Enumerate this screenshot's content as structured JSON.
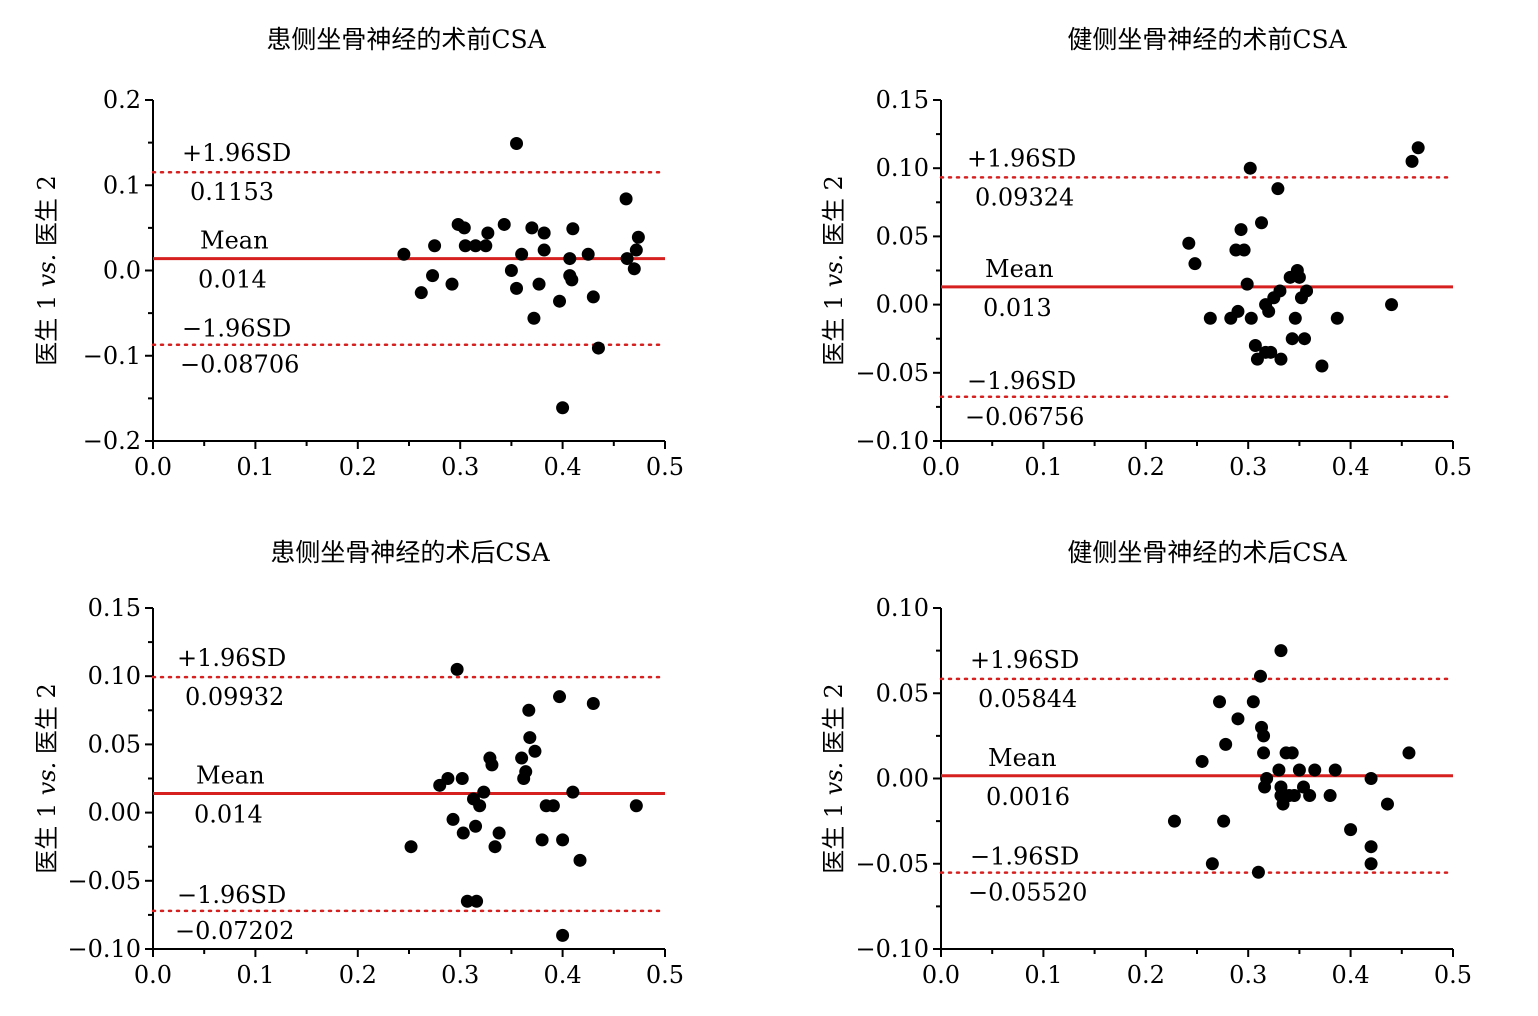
{
  "chart_data": [
    {
      "type": "scatter",
      "title": "患侧坐骨神经的术前CSA",
      "ylabel": "医生 1 vs. 医生 2",
      "xlim": [
        0,
        0.5
      ],
      "ylim": [
        -0.2,
        0.2
      ],
      "xticks": [
        "0.0",
        "0.1",
        "0.2",
        "0.3",
        "0.4",
        "0.5"
      ],
      "yticks": [
        "0.2",
        "0.1",
        "0.0",
        "−0.1",
        "−0.2"
      ],
      "ytick_values": [
        0.2,
        0.1,
        0.0,
        -0.1,
        -0.2
      ],
      "upper": {
        "label": "+1.96SD",
        "value": 0.1153,
        "text": "0.1153"
      },
      "mean": {
        "label": "Mean",
        "value": 0.014,
        "text": "0.014"
      },
      "lower": {
        "label": "−1.96SD",
        "value": -0.08706,
        "text": "−0.08706"
      },
      "line_color": "#d62020",
      "points": [
        [
          0.245,
          0.019
        ],
        [
          0.262,
          -0.026
        ],
        [
          0.273,
          -0.006
        ],
        [
          0.275,
          0.029
        ],
        [
          0.292,
          -0.016
        ],
        [
          0.298,
          0.054
        ],
        [
          0.304,
          0.05
        ],
        [
          0.305,
          0.029
        ],
        [
          0.315,
          0.029
        ],
        [
          0.325,
          0.029
        ],
        [
          0.327,
          0.044
        ],
        [
          0.343,
          0.054
        ],
        [
          0.35,
          0.0
        ],
        [
          0.355,
          0.149
        ],
        [
          0.355,
          -0.021
        ],
        [
          0.36,
          0.019
        ],
        [
          0.37,
          0.05
        ],
        [
          0.372,
          -0.056
        ],
        [
          0.377,
          -0.016
        ],
        [
          0.382,
          0.044
        ],
        [
          0.382,
          0.024
        ],
        [
          0.397,
          -0.036
        ],
        [
          0.4,
          -0.161
        ],
        [
          0.407,
          0.014
        ],
        [
          0.407,
          -0.006
        ],
        [
          0.409,
          -0.011
        ],
        [
          0.41,
          0.049
        ],
        [
          0.425,
          0.019
        ],
        [
          0.43,
          -0.031
        ],
        [
          0.435,
          -0.091
        ],
        [
          0.462,
          0.084
        ],
        [
          0.463,
          0.014
        ],
        [
          0.47,
          0.002
        ],
        [
          0.472,
          0.024
        ],
        [
          0.474,
          0.039
        ]
      ]
    },
    {
      "type": "scatter",
      "title": "健侧坐骨神经的术前CSA",
      "ylabel": "医生 1 vs. 医生 2",
      "xlim": [
        0,
        0.5
      ],
      "ylim": [
        -0.1,
        0.15
      ],
      "xticks": [
        "0.0",
        "0.1",
        "0.2",
        "0.3",
        "0.4",
        "0.5"
      ],
      "yticks": [
        "0.15",
        "0.10",
        "0.05",
        "0.00",
        "−0.05",
        "−0.10"
      ],
      "ytick_values": [
        0.15,
        0.1,
        0.05,
        0.0,
        -0.05,
        -0.1
      ],
      "upper": {
        "label": "+1.96SD",
        "value": 0.09324,
        "text": "0.09324"
      },
      "mean": {
        "label": "Mean",
        "value": 0.013,
        "text": "0.013"
      },
      "lower": {
        "label": "−1.96SD",
        "value": -0.06756,
        "text": "−0.06756"
      },
      "line_color": "#d62020",
      "points": [
        [
          0.242,
          0.045
        ],
        [
          0.248,
          0.03
        ],
        [
          0.263,
          -0.01
        ],
        [
          0.283,
          -0.01
        ],
        [
          0.288,
          0.04
        ],
        [
          0.29,
          -0.005
        ],
        [
          0.293,
          0.055
        ],
        [
          0.296,
          0.04
        ],
        [
          0.299,
          0.015
        ],
        [
          0.302,
          0.1
        ],
        [
          0.303,
          -0.01
        ],
        [
          0.307,
          -0.03
        ],
        [
          0.309,
          -0.04
        ],
        [
          0.313,
          0.06
        ],
        [
          0.317,
          0.0
        ],
        [
          0.317,
          -0.035
        ],
        [
          0.32,
          -0.005
        ],
        [
          0.322,
          -0.035
        ],
        [
          0.325,
          0.005
        ],
        [
          0.329,
          0.085
        ],
        [
          0.331,
          0.01
        ],
        [
          0.332,
          -0.04
        ],
        [
          0.341,
          0.02
        ],
        [
          0.343,
          -0.025
        ],
        [
          0.346,
          -0.01
        ],
        [
          0.348,
          0.025
        ],
        [
          0.35,
          0.02
        ],
        [
          0.352,
          0.005
        ],
        [
          0.355,
          -0.025
        ],
        [
          0.357,
          0.01
        ],
        [
          0.372,
          -0.045
        ],
        [
          0.387,
          -0.01
        ],
        [
          0.44,
          0.0
        ],
        [
          0.46,
          0.105
        ],
        [
          0.466,
          0.115
        ]
      ]
    },
    {
      "type": "scatter",
      "title": "患侧坐骨神经的术后CSA",
      "ylabel": "医生 1 vs. 医生 2",
      "xlim": [
        0,
        0.5
      ],
      "ylim": [
        -0.1,
        0.15
      ],
      "xticks": [
        "0.0",
        "0.1",
        "0.2",
        "0.3",
        "0.4",
        "0.5"
      ],
      "yticks": [
        "0.15",
        "0.10",
        "0.05",
        "0.00",
        "−0.05",
        "−0.10"
      ],
      "ytick_values": [
        0.15,
        0.1,
        0.05,
        0.0,
        -0.05,
        -0.1
      ],
      "upper": {
        "label": "+1.96SD",
        "value": 0.09932,
        "text": "0.09932"
      },
      "mean": {
        "label": "Mean",
        "value": 0.014,
        "text": "0.014"
      },
      "lower": {
        "label": "−1.96SD",
        "value": -0.07202,
        "text": "−0.07202"
      },
      "line_color": "#d62020",
      "points": [
        [
          0.252,
          -0.025
        ],
        [
          0.28,
          0.02
        ],
        [
          0.288,
          0.025
        ],
        [
          0.293,
          -0.005
        ],
        [
          0.297,
          0.105
        ],
        [
          0.302,
          0.025
        ],
        [
          0.303,
          -0.015
        ],
        [
          0.307,
          -0.065
        ],
        [
          0.313,
          0.01
        ],
        [
          0.315,
          -0.01
        ],
        [
          0.316,
          -0.065
        ],
        [
          0.319,
          0.005
        ],
        [
          0.323,
          0.015
        ],
        [
          0.329,
          0.04
        ],
        [
          0.331,
          0.035
        ],
        [
          0.334,
          -0.025
        ],
        [
          0.338,
          -0.015
        ],
        [
          0.36,
          0.04
        ],
        [
          0.362,
          0.025
        ],
        [
          0.364,
          0.03
        ],
        [
          0.367,
          0.075
        ],
        [
          0.368,
          0.055
        ],
        [
          0.373,
          0.045
        ],
        [
          0.38,
          -0.02
        ],
        [
          0.384,
          0.005
        ],
        [
          0.391,
          0.005
        ],
        [
          0.397,
          0.085
        ],
        [
          0.4,
          -0.02
        ],
        [
          0.4,
          -0.09
        ],
        [
          0.41,
          0.015
        ],
        [
          0.417,
          -0.035
        ],
        [
          0.43,
          0.08
        ],
        [
          0.472,
          0.005
        ]
      ]
    },
    {
      "type": "scatter",
      "title": "健侧坐骨神经的术后CSA",
      "ylabel": "医生 1 vs. 医生 2",
      "xlim": [
        0,
        0.5
      ],
      "ylim": [
        -0.1,
        0.1
      ],
      "xticks": [
        "0.0",
        "0.1",
        "0.2",
        "0.3",
        "0.4",
        "0.5"
      ],
      "yticks": [
        "0.10",
        "0.05",
        "0.00",
        "−0.05",
        "−0.10"
      ],
      "ytick_values": [
        0.1,
        0.05,
        0.0,
        -0.05,
        -0.1
      ],
      "upper": {
        "label": "+1.96SD",
        "value": 0.05844,
        "text": "0.05844"
      },
      "mean": {
        "label": "Mean",
        "value": 0.0016,
        "text": "0.0016"
      },
      "lower": {
        "label": "−1.96SD",
        "value": -0.0552,
        "text": "−0.05520"
      },
      "line_color": "#d62020",
      "points": [
        [
          0.228,
          -0.025
        ],
        [
          0.255,
          0.01
        ],
        [
          0.265,
          -0.05
        ],
        [
          0.272,
          0.045
        ],
        [
          0.276,
          -0.025
        ],
        [
          0.278,
          0.02
        ],
        [
          0.29,
          0.035
        ],
        [
          0.305,
          0.045
        ],
        [
          0.31,
          -0.055
        ],
        [
          0.312,
          0.06
        ],
        [
          0.313,
          0.03
        ],
        [
          0.315,
          0.025
        ],
        [
          0.315,
          0.015
        ],
        [
          0.316,
          -0.005
        ],
        [
          0.318,
          0.0
        ],
        [
          0.33,
          0.005
        ],
        [
          0.332,
          0.075
        ],
        [
          0.332,
          -0.005
        ],
        [
          0.332,
          -0.01
        ],
        [
          0.334,
          -0.015
        ],
        [
          0.337,
          0.015
        ],
        [
          0.34,
          -0.01
        ],
        [
          0.343,
          0.015
        ],
        [
          0.345,
          -0.01
        ],
        [
          0.35,
          0.005
        ],
        [
          0.354,
          -0.005
        ],
        [
          0.36,
          -0.01
        ],
        [
          0.365,
          0.005
        ],
        [
          0.38,
          -0.01
        ],
        [
          0.385,
          0.005
        ],
        [
          0.4,
          -0.03
        ],
        [
          0.42,
          0.0
        ],
        [
          0.42,
          -0.04
        ],
        [
          0.42,
          -0.05
        ],
        [
          0.436,
          -0.015
        ],
        [
          0.457,
          0.015
        ]
      ]
    }
  ]
}
